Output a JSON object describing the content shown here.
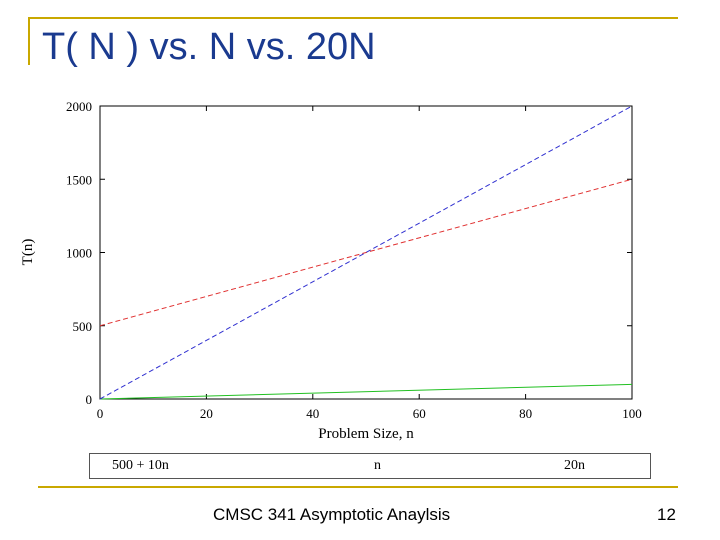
{
  "slide": {
    "title": "T( N ) vs. N vs. 20N",
    "footer": "CMSC 341 Asymptotic Anaylsis",
    "page_number": "12",
    "accent_color": "#c9a800",
    "title_color": "#1a3a8f"
  },
  "chart_data": {
    "type": "line",
    "title": "",
    "xlabel": "Problem Size, n",
    "ylabel": "T(n)",
    "xlim": [
      0,
      100
    ],
    "ylim": [
      0,
      2000
    ],
    "x_ticks": [
      0,
      20,
      40,
      60,
      80,
      100
    ],
    "y_ticks": [
      0,
      500,
      1000,
      1500,
      2000
    ],
    "grid": false,
    "legend_position": "bottom",
    "series": [
      {
        "name": "500 + 10n",
        "color": "#e03030",
        "style": "dashed",
        "x": [
          0,
          100
        ],
        "y": [
          500,
          1500
        ]
      },
      {
        "name": "n",
        "color": "#22c022",
        "style": "solid",
        "x": [
          0,
          100
        ],
        "y": [
          0,
          100
        ]
      },
      {
        "name": "20n",
        "color": "#3030d0",
        "style": "dashed",
        "x": [
          0,
          100
        ],
        "y": [
          0,
          2000
        ]
      }
    ]
  }
}
